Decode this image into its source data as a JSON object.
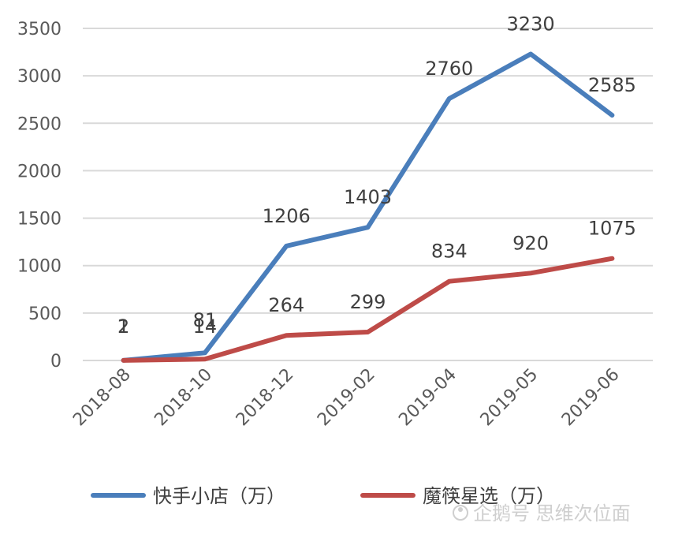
{
  "chart_data": {
    "type": "line",
    "categories": [
      "2018-08",
      "2018-10",
      "2018-12",
      "2019-02",
      "2019-04",
      "2019-05",
      "2019-06"
    ],
    "series": [
      {
        "name": "快手小店（万）",
        "color": "#4a7ebb",
        "values": [
          2,
          81,
          1206,
          1403,
          2760,
          3230,
          2585
        ]
      },
      {
        "name": "魔筷星选（万）",
        "color": "#be4b48",
        "values": [
          1,
          14,
          264,
          299,
          834,
          920,
          1075
        ]
      }
    ],
    "yticks": [
      0,
      500,
      1000,
      1500,
      2000,
      2500,
      3000,
      3500
    ],
    "ylim": [
      0,
      3500
    ],
    "grid": true,
    "legend": "bottom"
  },
  "watermark": {
    "text": "企鹅号 思维次位面"
  }
}
